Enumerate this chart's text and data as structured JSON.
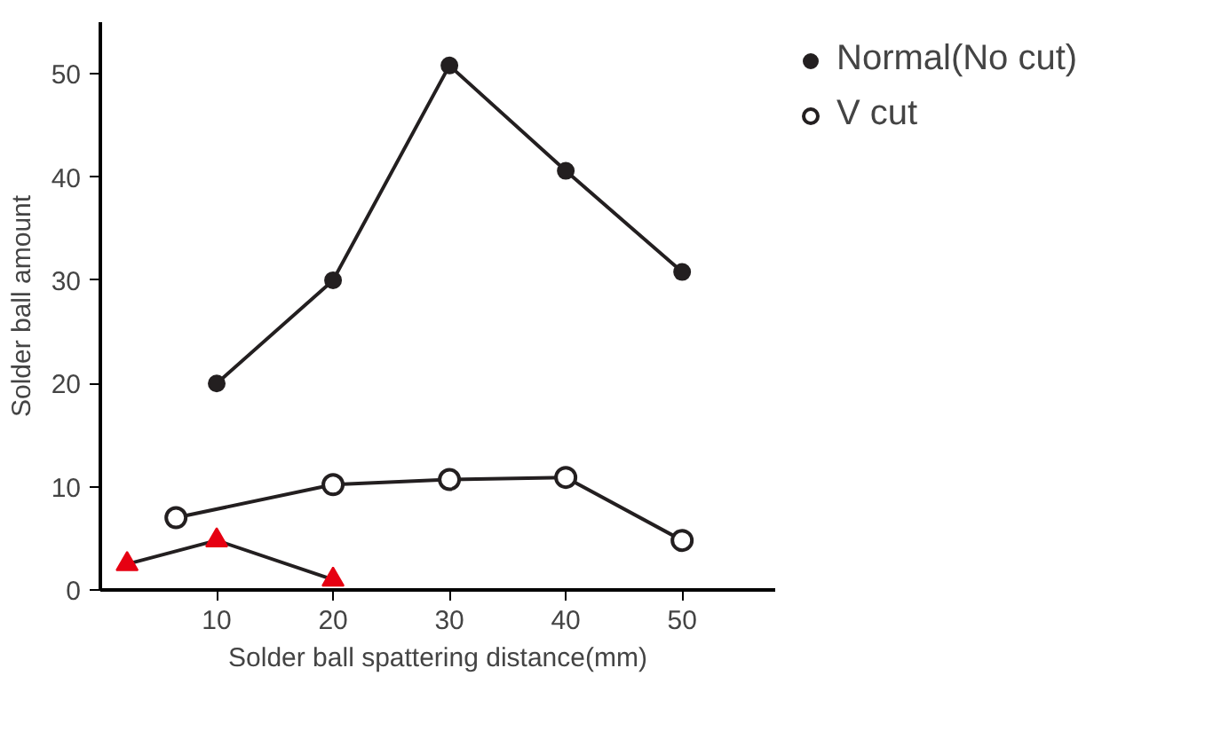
{
  "chart_data": {
    "type": "line",
    "xlabel": "Solder ball spattering distance(mm)",
    "ylabel": "Solder ball amount",
    "xlim": [
      0,
      58
    ],
    "ylim": [
      0,
      55
    ],
    "xticks": [
      10,
      20,
      30,
      40,
      50
    ],
    "yticks": [
      0,
      10,
      20,
      30,
      40,
      50
    ],
    "grid": false,
    "legend": "top right",
    "line_style": "solid",
    "series": [
      {
        "name": "Normal(No cut)",
        "color": "#231f20",
        "marker": "circle",
        "x": [
          10,
          20,
          30,
          40,
          50
        ],
        "values": [
          20,
          30,
          50.8,
          40.6,
          30.8
        ]
      },
      {
        "name": "V cut",
        "color": "#231f20",
        "marker": "circle_open",
        "x": [
          6.5,
          20,
          30,
          40,
          50
        ],
        "values": [
          7,
          10.2,
          10.7,
          10.9,
          4.8
        ]
      },
      {
        "color": "#e60012",
        "marker": "triangle",
        "x": [
          2.3,
          10,
          20
        ],
        "values": [
          2.5,
          4.8,
          1
        ]
      }
    ]
  }
}
